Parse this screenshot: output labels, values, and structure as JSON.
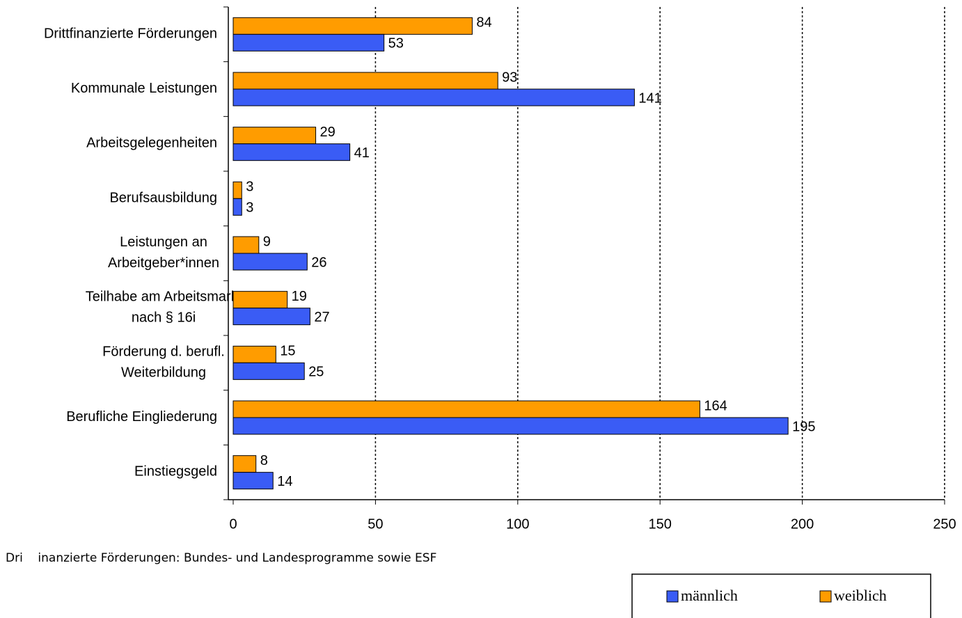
{
  "chart_data": {
    "type": "hbar",
    "categories": [
      "Drittfinanzierte Förderungen",
      "Kommunale Leistungen",
      "Arbeitsgelegenheiten",
      "Berufsausbildung",
      "Leistungen an\nArbeitgeber*innen",
      "Teilhabe am Arbeitsmarkt\nnach § 16i",
      "Förderung d. berufl.\nWeiterbildung",
      "Berufliche Eingliederung",
      "Einstiegsgeld"
    ],
    "series": [
      {
        "name": "männlich",
        "color": "#3a5cf5",
        "values": [
          53,
          141,
          41,
          3,
          26,
          27,
          25,
          195,
          14
        ]
      },
      {
        "name": "weiblich",
        "color": "#ff9c00",
        "values": [
          84,
          93,
          29,
          3,
          9,
          19,
          15,
          164,
          8
        ]
      }
    ],
    "xlim": [
      0,
      250
    ],
    "xticks": [
      0,
      50,
      100,
      150,
      200,
      250
    ],
    "grid": true,
    "note": "Dri    inanzierte Förderungen: Bundes- und Landesprogramme sowie ESF",
    "legend": "bottom-right"
  }
}
